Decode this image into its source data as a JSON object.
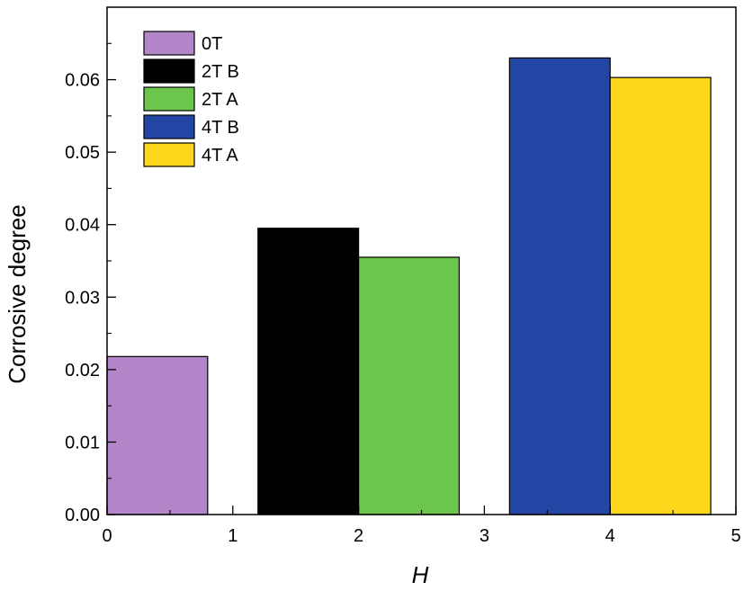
{
  "chart_data": {
    "type": "bar",
    "title": "",
    "xlabel": "H",
    "ylabel": "Corrosive degree",
    "xlim": [
      0,
      5
    ],
    "ylim": [
      0,
      0.07
    ],
    "xticks": [
      "0",
      "1",
      "2",
      "3",
      "4",
      "5"
    ],
    "yticks": [
      "0.00",
      "0.01",
      "0.02",
      "0.03",
      "0.04",
      "0.05",
      "0.06"
    ],
    "grid": false,
    "legend_position": "top-left",
    "series": [
      {
        "name": "0T",
        "color": "#b385c8",
        "x_start": 0.0,
        "x_end": 0.8,
        "value": 0.0218
      },
      {
        "name": "2T B",
        "color": "#000000",
        "x_start": 1.2,
        "x_end": 2.0,
        "value": 0.0395
      },
      {
        "name": "2T A",
        "color": "#6cc64b",
        "x_start": 2.0,
        "x_end": 2.8,
        "value": 0.0355
      },
      {
        "name": "4T B",
        "color": "#2346a5",
        "x_start": 3.2,
        "x_end": 4.0,
        "value": 0.063
      },
      {
        "name": "4T A",
        "color": "#fdd71b",
        "x_start": 4.0,
        "x_end": 4.8,
        "value": 0.0603
      }
    ]
  }
}
